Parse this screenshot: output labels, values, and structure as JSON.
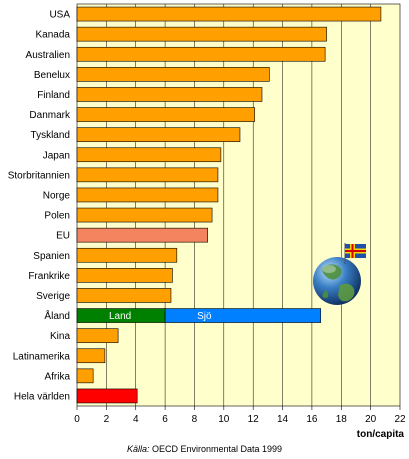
{
  "chart_data": {
    "type": "bar",
    "orientation": "horizontal",
    "categories": [
      "USA",
      "Kanada",
      "Australien",
      "Benelux",
      "Finland",
      "Danmark",
      "Tyskland",
      "Japan",
      "Storbritannien",
      "Norge",
      "Polen",
      "EU",
      "Spanien",
      "Frankrike",
      "Sverige",
      "Åland",
      "Kina",
      "Latinamerika",
      "Afrika",
      "Hela världen"
    ],
    "values": [
      20.7,
      17.0,
      16.9,
      13.1,
      12.6,
      12.1,
      11.1,
      9.8,
      9.6,
      9.6,
      9.2,
      8.9,
      6.8,
      6.5,
      6.4,
      16.6,
      2.8,
      1.9,
      1.1,
      4.1
    ],
    "segments": {
      "Åland": [
        {
          "label": "Land",
          "value": 6.0,
          "color": "#008000"
        },
        {
          "label": "Sjö",
          "value": 10.6,
          "color": "#0080ff"
        }
      ]
    },
    "highlight": {
      "EU": "#f4845f",
      "Hela världen": "#ff0000"
    },
    "bar_color": "#ffa000",
    "plot_background": "#ffffcc",
    "xlim": [
      0,
      22
    ],
    "x_ticks": [
      0,
      2,
      4,
      6,
      8,
      10,
      12,
      14,
      16,
      18,
      20,
      22
    ],
    "xlabel": "ton/capita",
    "ylabel": "",
    "title": "",
    "grid": true
  },
  "source": {
    "label": "Källa:",
    "text": "OECD Environmental Data 1999"
  },
  "decorations": {
    "flag_icon": "aland-flag-icon",
    "globe_icon": "globe-icon"
  }
}
